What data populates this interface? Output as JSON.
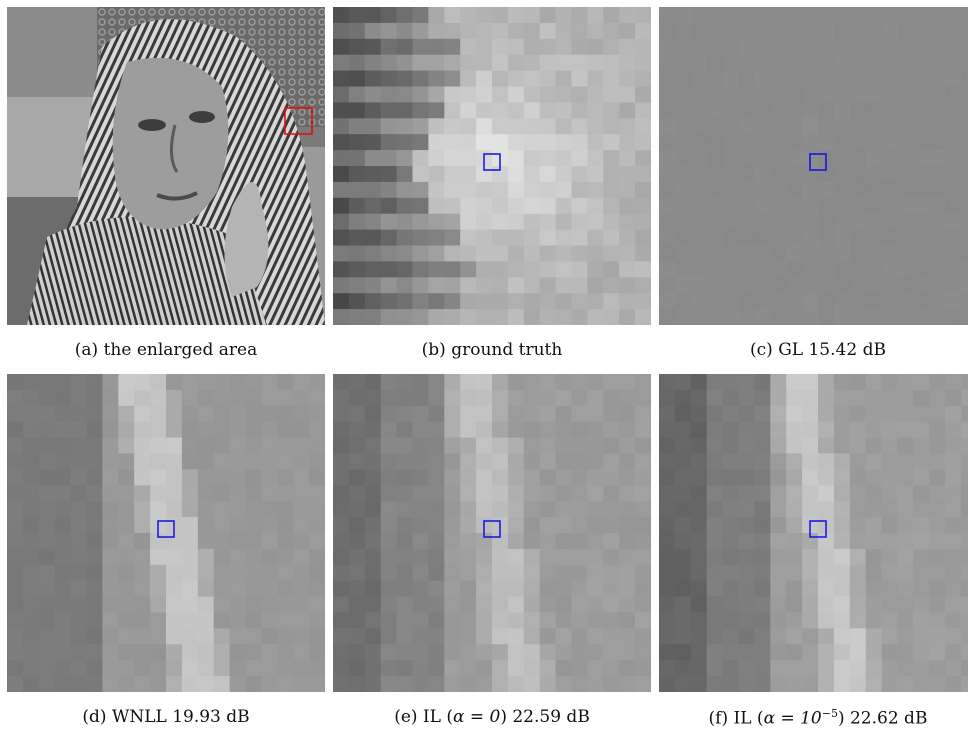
{
  "figure": {
    "panels": [
      {
        "id": "a",
        "caption": "(a)  the enlarged area"
      },
      {
        "id": "b",
        "caption": "(b)  ground truth"
      },
      {
        "id": "c",
        "caption": "(c)  GL   15.42 dB"
      },
      {
        "id": "d",
        "caption": "(d)  WNLL   19.93 dB"
      },
      {
        "id": "e",
        "caption_prefix": "(e)  IL (",
        "caption_alpha": "α = 0",
        "caption_suffix": ")   22.59 dB"
      },
      {
        "id": "f",
        "caption_prefix": "(f)  IL (",
        "caption_alpha": "α = 10",
        "caption_exp": "−5",
        "caption_suffix": ")   22.62 dB"
      }
    ],
    "colors": {
      "enlarged_box": "#e01010",
      "marker_box": "#1010e0"
    }
  }
}
